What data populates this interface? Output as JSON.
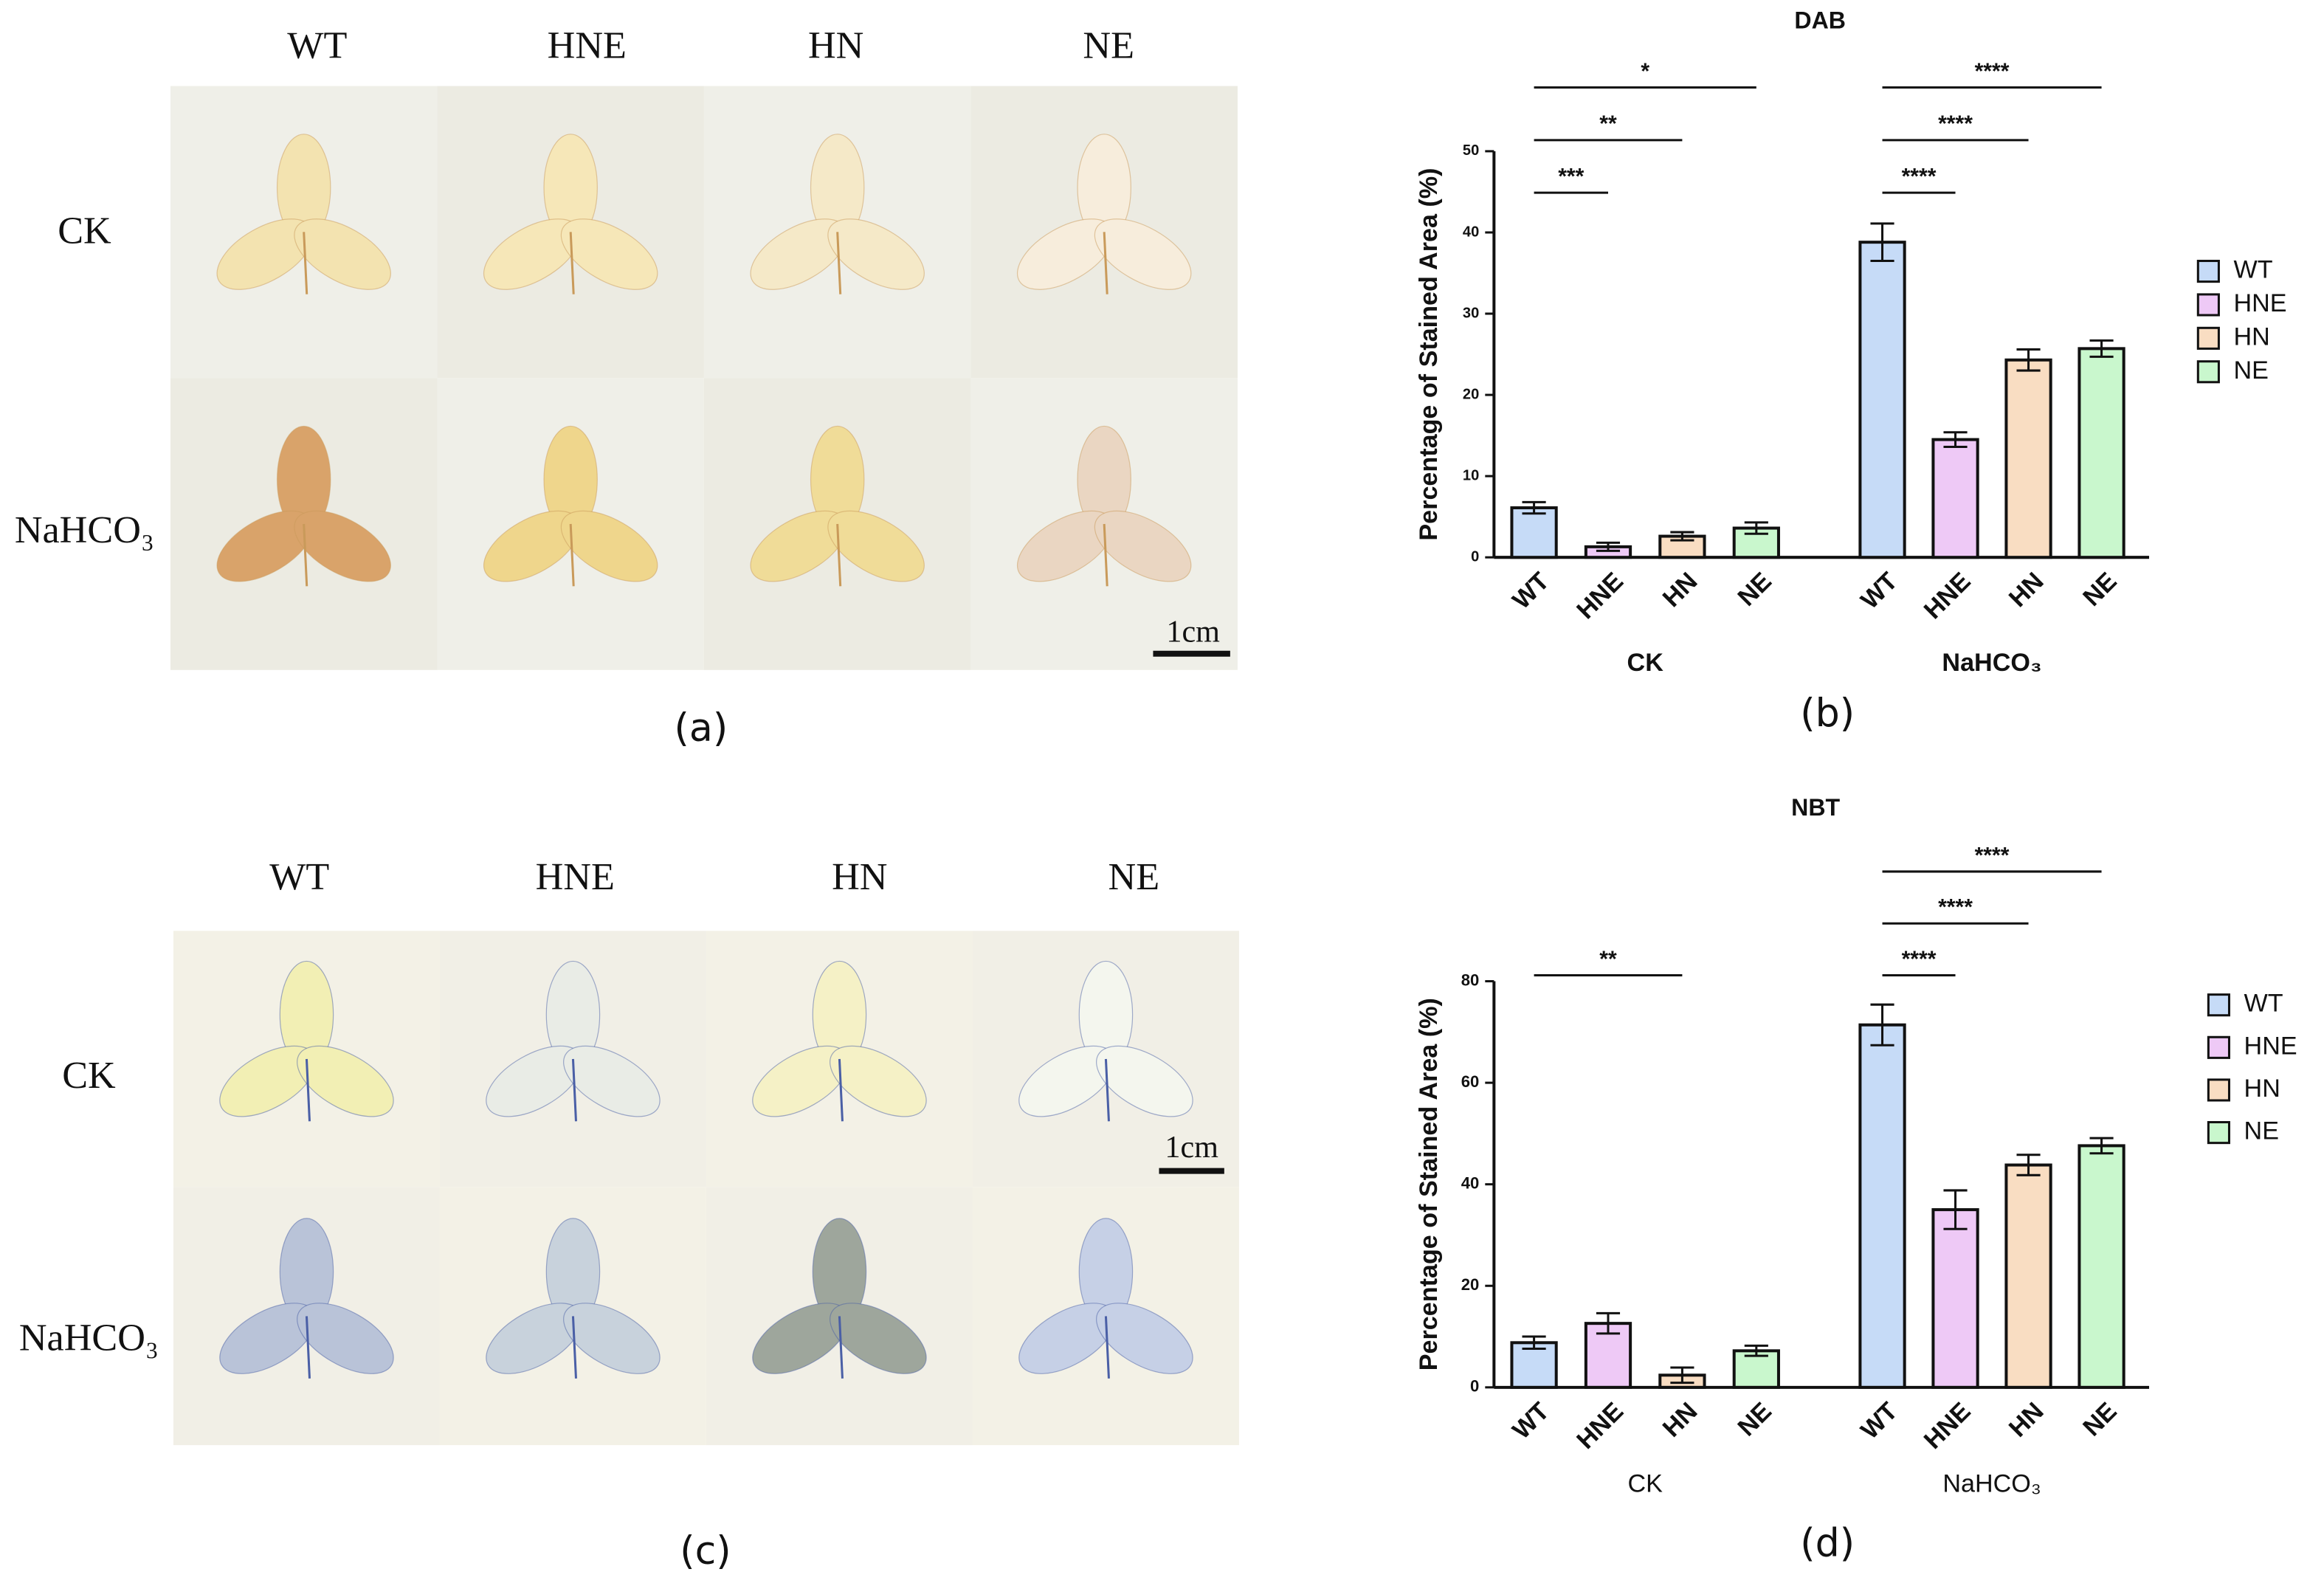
{
  "photo_panels": [
    {
      "label": "(a)",
      "columns": [
        "WT",
        "HNE",
        "HN",
        "NE"
      ],
      "rows": [
        "CK",
        "NaHCO₃"
      ],
      "scale_bar": "1cm"
    },
    {
      "label": "(c)",
      "columns": [
        "WT",
        "HNE",
        "HN",
        "NE"
      ],
      "rows": [
        "CK",
        "NaHCO₃"
      ],
      "scale_bar": "1cm"
    }
  ],
  "chart_data": [
    {
      "type": "bar",
      "title": "DAB",
      "panel_label": "(b)",
      "ylabel": "Percentage of Stained Area (%)",
      "categories": [
        "CK",
        "NaHCO₃"
      ],
      "series": [
        {
          "name": "WT",
          "color": "#c6dbf7",
          "values": [
            6.1,
            38.8
          ],
          "errors": [
            0.7,
            2.3
          ]
        },
        {
          "name": "HNE",
          "color": "#eec9f6",
          "values": [
            1.3,
            14.5
          ],
          "errors": [
            0.5,
            0.9
          ]
        },
        {
          "name": "HN",
          "color": "#f9ddc2",
          "values": [
            2.6,
            24.3
          ],
          "errors": [
            0.5,
            1.3
          ]
        },
        {
          "name": "NE",
          "color": "#c9f7cd",
          "values": [
            3.6,
            25.7
          ],
          "errors": [
            0.7,
            1.0
          ]
        }
      ],
      "ylim": [
        0,
        50
      ],
      "yticks": [
        0,
        10,
        20,
        30,
        40,
        50
      ],
      "significance": [
        {
          "group": "CK",
          "from": "WT",
          "to": "HNE",
          "label": "***"
        },
        {
          "group": "CK",
          "from": "WT",
          "to": "HN",
          "label": "**"
        },
        {
          "group": "CK",
          "from": "WT",
          "to": "NE",
          "label": "*"
        },
        {
          "group": "NaHCO₃",
          "from": "WT",
          "to": "HNE",
          "label": "****"
        },
        {
          "group": "NaHCO₃",
          "from": "WT",
          "to": "HN",
          "label": "****"
        },
        {
          "group": "NaHCO₃",
          "from": "WT",
          "to": "NE",
          "label": "****"
        }
      ]
    },
    {
      "type": "bar",
      "title": "NBT",
      "panel_label": "(d)",
      "ylabel": "Percentage of Stained Area (%)",
      "categories": [
        "CK",
        "NaHCO₃"
      ],
      "series": [
        {
          "name": "WT",
          "color": "#c6dbf7",
          "values": [
            8.8,
            71.4
          ],
          "errors": [
            1.2,
            4.0
          ]
        },
        {
          "name": "HNE",
          "color": "#eec9f6",
          "values": [
            12.6,
            35.0
          ],
          "errors": [
            2.0,
            3.8
          ]
        },
        {
          "name": "HN",
          "color": "#f9ddc2",
          "values": [
            2.4,
            43.8
          ],
          "errors": [
            1.5,
            2.0
          ]
        },
        {
          "name": "NE",
          "color": "#c9f7cd",
          "values": [
            7.2,
            47.6
          ],
          "errors": [
            1.0,
            1.5
          ]
        }
      ],
      "ylim": [
        0,
        80
      ],
      "yticks": [
        0,
        20,
        40,
        60,
        80
      ],
      "significance": [
        {
          "group": "CK",
          "from": "WT",
          "to": "HN",
          "label": "**"
        },
        {
          "group": "NaHCO₃",
          "from": "WT",
          "to": "HNE",
          "label": "****"
        },
        {
          "group": "NaHCO₃",
          "from": "WT",
          "to": "HN",
          "label": "****"
        },
        {
          "group": "NaHCO₃",
          "from": "WT",
          "to": "NE",
          "label": "****"
        }
      ]
    }
  ]
}
